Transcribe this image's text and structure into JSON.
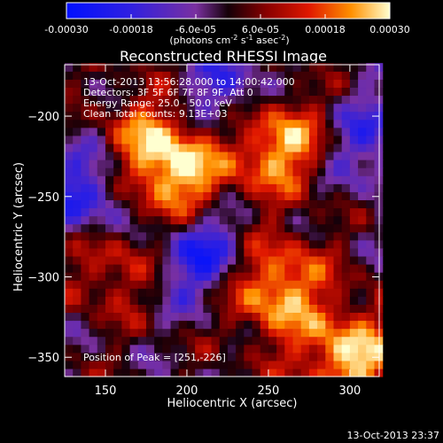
{
  "chart_data": {
    "type": "heatmap",
    "title": "Reconstructed RHESSI Image",
    "xlabel": "Heliocentric X (arcsec)",
    "ylabel": "Heliocentric Y (arcsec)",
    "xlim": [
      125,
      318
    ],
    "ylim": [
      -362,
      -168
    ],
    "xticks": [
      150,
      200,
      250,
      300
    ],
    "yticks": [
      -350,
      -300,
      -250,
      -200
    ],
    "colorbar": {
      "ticks": [
        "-0.00030",
        "-0.00018",
        "-6.0e-05",
        "6.0e-05",
        "0.00018",
        "0.00030"
      ],
      "range": [
        -0.0003,
        0.0003
      ],
      "unit_line1": "(photons cm",
      "unit_exp1": "-2",
      "unit_mid": " s",
      "unit_exp2": "-1",
      "unit_mid2": " asec",
      "unit_exp3": "-2",
      "unit_end": ")"
    },
    "annotations": [
      "13-Oct-2013 13:56:28.000 to 14:00:42.000",
      "Detectors: 3F 5F 6F 7F 8F 9F, Att 0",
      "Energy Range: 25.0 - 50.0 keV",
      "Clean     Total counts: 9.13E+03"
    ],
    "peak_label": "Position of Peak = [251,-226]",
    "bright_sources": [
      {
        "x": 195,
        "y": -240,
        "value": 0.00024
      },
      {
        "x": 255,
        "y": -215,
        "value": 0.0003
      },
      {
        "x": 252,
        "y": -305,
        "value": 0.00028
      },
      {
        "x": 300,
        "y": -350,
        "value": 0.00027
      },
      {
        "x": 180,
        "y": -215,
        "value": 0.0002
      },
      {
        "x": 155,
        "y": -290,
        "value": 0.00016
      }
    ],
    "dark_regions": [
      {
        "x": 140,
        "y": -250,
        "value": -0.00022
      },
      {
        "x": 210,
        "y": -285,
        "value": -0.00026
      },
      {
        "x": 225,
        "y": -190,
        "value": -0.0002
      },
      {
        "x": 310,
        "y": -215,
        "value": -0.00016
      }
    ]
  },
  "footer": {
    "timestamp": "13-Oct-2013 23:37"
  }
}
